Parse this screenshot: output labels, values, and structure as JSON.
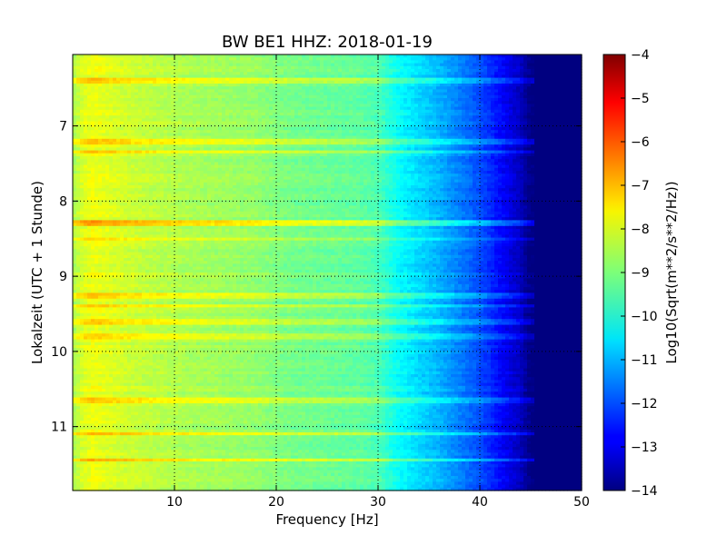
{
  "chart_data": {
    "type": "heatmap",
    "title": "BW BE1 HHZ: 2018-01-19",
    "xlabel": "Frequency [Hz]",
    "ylabel": "Lokalzeit (UTC + 1 Stunde)",
    "xlim": [
      0,
      50
    ],
    "ylim": [
      11.85,
      6.05
    ],
    "x_ticks": [
      10,
      20,
      30,
      40,
      50
    ],
    "x_tick_labels": [
      "10",
      "20",
      "30",
      "40",
      "50"
    ],
    "y_ticks": [
      7,
      8,
      9,
      10,
      11
    ],
    "y_tick_labels": [
      "7",
      "8",
      "9",
      "10",
      "11"
    ],
    "grid": true,
    "colormap": "jet",
    "colorbar": {
      "label": "Log10(Sqrt(m**2/s**2/Hz))",
      "range": [
        -14,
        -4
      ],
      "ticks": [
        -4,
        -5,
        -6,
        -7,
        -8,
        -9,
        -10,
        -11,
        -12,
        -13,
        -14
      ],
      "tick_labels": [
        "−4",
        "−5",
        "−6",
        "−7",
        "−8",
        "−9",
        "−10",
        "−11",
        "−12",
        "−13",
        "−14"
      ]
    },
    "spectrum_profile": {
      "frequency_hz": [
        0,
        1,
        2,
        3,
        5,
        8,
        10,
        12,
        15,
        18,
        20,
        22,
        25,
        28,
        30,
        32,
        34,
        36,
        38,
        40,
        42,
        44,
        45,
        46,
        50
      ],
      "log10_amplitude": [
        -8.6,
        -8.1,
        -7.9,
        -8.0,
        -8.2,
        -8.4,
        -8.5,
        -8.6,
        -8.7,
        -8.8,
        -9.0,
        -9.1,
        -9.2,
        -9.3,
        -9.5,
        -10.2,
        -10.6,
        -11.0,
        -11.5,
        -12.0,
        -12.7,
        -13.4,
        -14.0,
        -14.0,
        -14.0
      ]
    },
    "bright_time_bands": [
      {
        "time_h": 6.4,
        "log10_offset": 0.7
      },
      {
        "time_h": 7.2,
        "log10_offset": 0.9
      },
      {
        "time_h": 7.35,
        "log10_offset": 0.9
      },
      {
        "time_h": 8.3,
        "log10_offset": 1.2
      },
      {
        "time_h": 8.5,
        "log10_offset": 0.6
      },
      {
        "time_h": 9.25,
        "log10_offset": 0.8
      },
      {
        "time_h": 9.4,
        "log10_offset": 0.7
      },
      {
        "time_h": 9.6,
        "log10_offset": 0.6
      },
      {
        "time_h": 9.8,
        "log10_offset": 0.6
      },
      {
        "time_h": 10.65,
        "log10_offset": 0.8
      },
      {
        "time_h": 11.1,
        "log10_offset": 0.9
      },
      {
        "time_h": 11.45,
        "log10_offset": 1.0
      }
    ]
  }
}
